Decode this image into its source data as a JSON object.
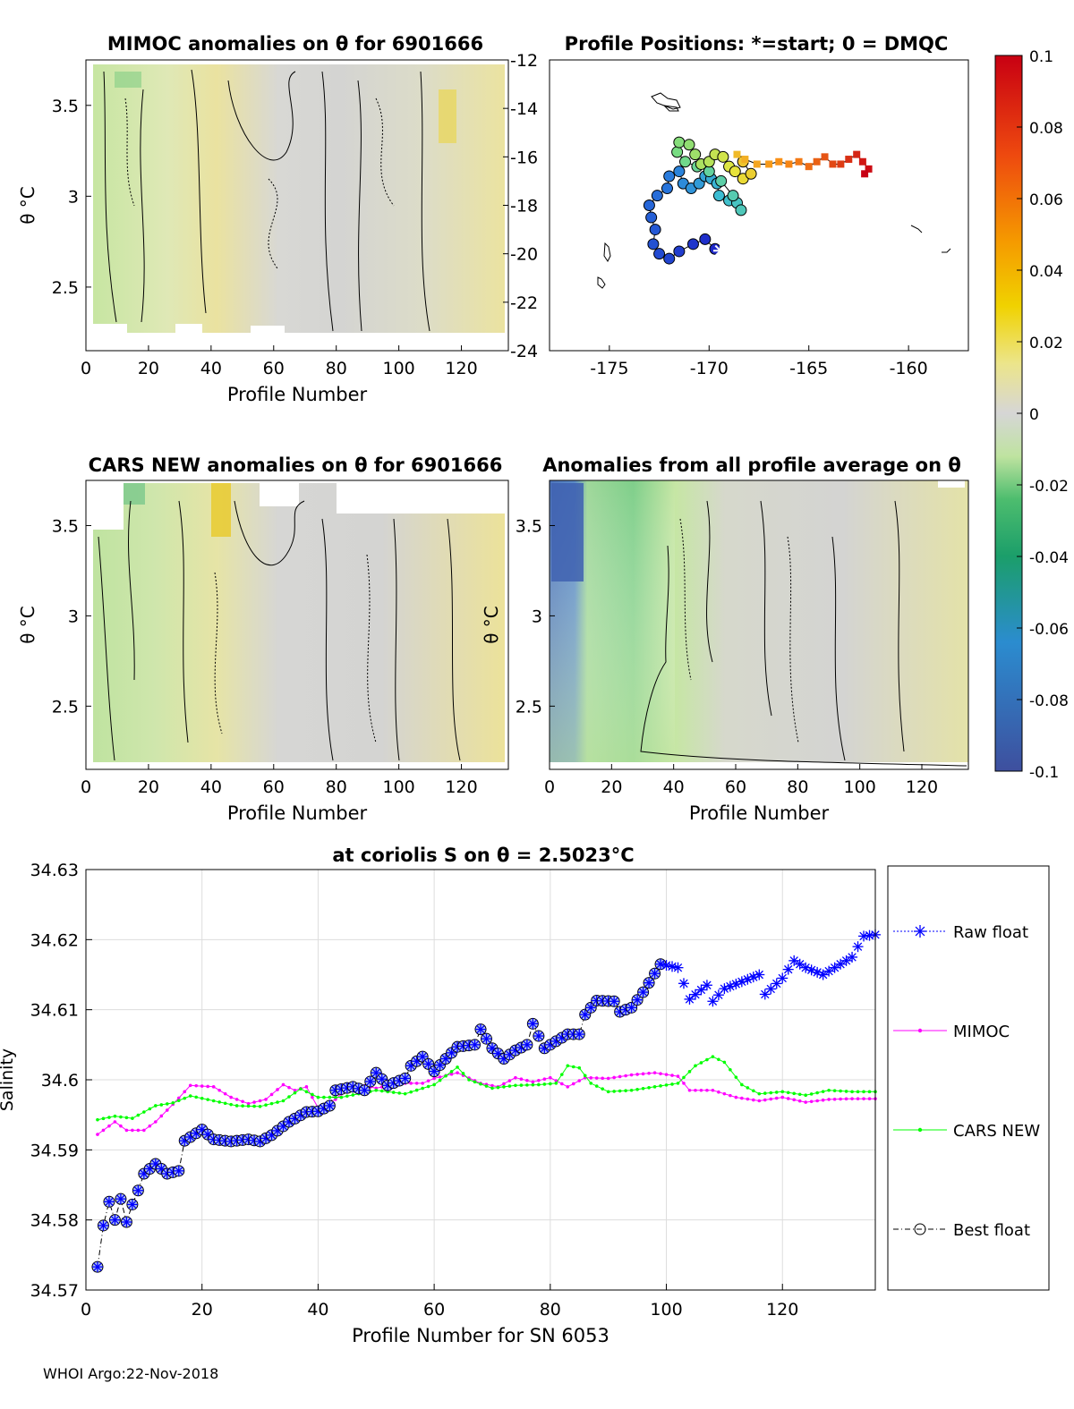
{
  "footer": "WHOI Argo:22-Nov-2018",
  "colorbar": {
    "ticks": [
      "0.1",
      "0.08",
      "0.06",
      "0.04",
      "0.02",
      "0",
      "-0.02",
      "-0.04",
      "-0.06",
      "-0.08",
      "-0.1"
    ],
    "range": [
      -0.1,
      0.1
    ]
  },
  "chart_data": [
    {
      "type": "heatmap",
      "title": "MIMOC anomalies on θ  for 6901666",
      "xlabel": "Profile Number",
      "ylabel": "θ °C",
      "xlim": [
        0,
        135
      ],
      "ylim": [
        2.15,
        3.75
      ],
      "xticks": [
        "0",
        "20",
        "40",
        "60",
        "80",
        "100",
        "120"
      ],
      "yticks": [
        "3.5",
        "3",
        "2.5"
      ]
    },
    {
      "type": "scatter",
      "title": "Profile Positions: *=start; 0 = DMQC",
      "xlim": [
        -178,
        -157
      ],
      "ylim": [
        -24,
        -12
      ],
      "xticks": [
        "-175",
        "-170",
        "-165",
        "-160"
      ],
      "yticks": [
        "-12",
        "-14",
        "-16",
        "-18",
        "-20",
        "-22",
        "-24"
      ],
      "track": [
        [
          -169.7,
          -19.8
        ],
        [
          -170.2,
          -19.4
        ],
        [
          -170.8,
          -19.6
        ],
        [
          -171.5,
          -19.9
        ],
        [
          -172,
          -20.2
        ],
        [
          -172.5,
          -20.0
        ],
        [
          -172.8,
          -19.6
        ],
        [
          -172.7,
          -19.0
        ],
        [
          -172.9,
          -18.5
        ],
        [
          -173,
          -18.0
        ],
        [
          -172.6,
          -17.6
        ],
        [
          -172.1,
          -17.3
        ],
        [
          -172.0,
          -16.8
        ],
        [
          -171.5,
          -16.6
        ],
        [
          -171.3,
          -17.1
        ],
        [
          -170.9,
          -17.3
        ],
        [
          -170.5,
          -17.1
        ],
        [
          -170.2,
          -16.8
        ],
        [
          -169.9,
          -16.9
        ],
        [
          -169.6,
          -17.1
        ],
        [
          -169.5,
          -17.6
        ],
        [
          -169.0,
          -17.8
        ],
        [
          -168.6,
          -17.9
        ],
        [
          -168.4,
          -18.2
        ],
        [
          -168.8,
          -17.6
        ],
        [
          -169.4,
          -17.0
        ],
        [
          -170.0,
          -16.6
        ],
        [
          -170.6,
          -16.4
        ],
        [
          -171.2,
          -16.2
        ],
        [
          -171.6,
          -15.8
        ],
        [
          -171.5,
          -15.4
        ],
        [
          -171.0,
          -15.5
        ],
        [
          -170.7,
          -15.9
        ],
        [
          -170.4,
          -16.3
        ],
        [
          -170.0,
          -16.2
        ],
        [
          -169.7,
          -15.9
        ],
        [
          -169.3,
          -16.0
        ],
        [
          -169.0,
          -16.4
        ],
        [
          -168.7,
          -16.6
        ],
        [
          -168.3,
          -16.9
        ],
        [
          -167.9,
          -16.7
        ],
        [
          -168.3,
          -16.2
        ],
        [
          -168.6,
          -15.9
        ],
        [
          -168.2,
          -16.1
        ],
        [
          -167.6,
          -16.3
        ],
        [
          -167.0,
          -16.3
        ],
        [
          -166.5,
          -16.2
        ],
        [
          -166.0,
          -16.3
        ],
        [
          -165.5,
          -16.2
        ],
        [
          -165.0,
          -16.4
        ],
        [
          -164.6,
          -16.2
        ],
        [
          -164.2,
          -16.0
        ],
        [
          -163.8,
          -16.3
        ],
        [
          -163.4,
          -16.3
        ],
        [
          -163.0,
          -16.1
        ],
        [
          -162.6,
          -15.9
        ],
        [
          -162.3,
          -16.2
        ],
        [
          -162.0,
          -16.5
        ],
        [
          -162.2,
          -16.7
        ]
      ]
    },
    {
      "type": "heatmap",
      "title": "CARS NEW anomalies on θ for 6901666",
      "xlabel": "Profile Number",
      "ylabel": "θ °C",
      "xlim": [
        0,
        135
      ],
      "ylim": [
        2.15,
        3.75
      ],
      "xticks": [
        "0",
        "20",
        "40",
        "60",
        "80",
        "100",
        "120"
      ],
      "yticks": [
        "3.5",
        "3",
        "2.5"
      ]
    },
    {
      "type": "heatmap",
      "title": "Anomalies from all profile average on θ",
      "xlabel": "Profile Number",
      "ylabel": "θ °C",
      "xlim": [
        0,
        135
      ],
      "ylim": [
        2.15,
        3.75
      ],
      "xticks": [
        "0",
        "20",
        "40",
        "60",
        "80",
        "100",
        "120"
      ],
      "yticks": [
        "3.5",
        "3",
        "2.5"
      ]
    },
    {
      "type": "line",
      "title": "at coriolis S on θ = 2.5023°C",
      "xlabel": "Profile Number for SN 6053",
      "ylabel": "Salinity",
      "xlim": [
        0,
        136
      ],
      "ylim": [
        34.57,
        34.63
      ],
      "xticks": [
        "0",
        "20",
        "40",
        "60",
        "80",
        "100",
        "120"
      ],
      "yticks": [
        "34.63",
        "34.62",
        "34.61",
        "34.6",
        "34.59",
        "34.58",
        "34.57"
      ],
      "legend_position": "right",
      "series": [
        {
          "name": "Raw float",
          "color": "#0000ff",
          "style": "dotted",
          "marker": "asterisk",
          "anchors": [
            [
              2,
              34.5733
            ],
            [
              3,
              34.5792
            ],
            [
              4,
              34.5826
            ],
            [
              5,
              34.58
            ],
            [
              6,
              34.583
            ],
            [
              7,
              34.5797
            ],
            [
              8,
              34.5822
            ],
            [
              9,
              34.5842
            ],
            [
              10,
              34.5866
            ],
            [
              12,
              34.588
            ],
            [
              14,
              34.5866
            ],
            [
              16,
              34.587
            ],
            [
              17,
              34.5913
            ],
            [
              20,
              34.5929
            ],
            [
              22,
              34.5915
            ],
            [
              25,
              34.5912
            ],
            [
              28,
              34.5915
            ],
            [
              30,
              34.5912
            ],
            [
              32,
              34.5921
            ],
            [
              35,
              34.594
            ],
            [
              38,
              34.5954
            ],
            [
              40,
              34.5955
            ],
            [
              42,
              34.5963
            ],
            [
              43,
              34.5985
            ],
            [
              46,
              34.599
            ],
            [
              48,
              34.5985
            ],
            [
              50,
              34.601
            ],
            [
              52,
              34.5992
            ],
            [
              55,
              34.6002
            ],
            [
              56,
              34.602
            ],
            [
              58,
              34.6033
            ],
            [
              60,
              34.6012
            ],
            [
              62,
              34.603
            ],
            [
              64,
              34.6047
            ],
            [
              67,
              34.605
            ],
            [
              68,
              34.6072
            ],
            [
              70,
              34.6045
            ],
            [
              72,
              34.603
            ],
            [
              74,
              34.6042
            ],
            [
              76,
              34.605
            ],
            [
              77,
              34.608
            ],
            [
              79,
              34.6045
            ],
            [
              81,
              34.6055
            ],
            [
              83,
              34.6065
            ],
            [
              85,
              34.6065
            ],
            [
              86,
              34.6093
            ],
            [
              88,
              34.6113
            ],
            [
              91,
              34.6112
            ],
            [
              92,
              34.6097
            ],
            [
              94,
              34.6103
            ],
            [
              96,
              34.6125
            ],
            [
              99,
              34.6165
            ],
            [
              102,
              34.616
            ],
            [
              104,
              34.6115
            ],
            [
              107,
              34.6135
            ],
            [
              108,
              34.6112
            ],
            [
              110,
              34.613
            ],
            [
              113,
              34.614
            ],
            [
              116,
              34.615
            ],
            [
              117,
              34.6122
            ],
            [
              120,
              34.6145
            ],
            [
              122,
              34.617
            ],
            [
              124,
              34.616
            ],
            [
              127,
              34.615
            ],
            [
              130,
              34.6165
            ],
            [
              132,
              34.6175
            ],
            [
              134,
              34.6205
            ],
            [
              136,
              34.6207
            ]
          ]
        },
        {
          "name": "MIMOC",
          "color": "#ff00ff",
          "style": "solid",
          "marker": "dot",
          "anchors": [
            [
              2,
              34.5922
            ],
            [
              5,
              34.594
            ],
            [
              7,
              34.5928
            ],
            [
              10,
              34.5928
            ],
            [
              12,
              34.594
            ],
            [
              15,
              34.5965
            ],
            [
              18,
              34.5992
            ],
            [
              22,
              34.599
            ],
            [
              25,
              34.5975
            ],
            [
              28,
              34.5966
            ],
            [
              31,
              34.5972
            ],
            [
              34,
              34.5993
            ],
            [
              36,
              34.5985
            ],
            [
              38,
              34.599
            ],
            [
              40,
              34.596
            ],
            [
              43,
              34.5972
            ],
            [
              46,
              34.5995
            ],
            [
              50,
              34.5988
            ],
            [
              54,
              34.5995
            ],
            [
              58,
              34.5995
            ],
            [
              60,
              34.6002
            ],
            [
              64,
              34.601
            ],
            [
              68,
              34.5995
            ],
            [
              71,
              34.599
            ],
            [
              74,
              34.6003
            ],
            [
              77,
              34.5997
            ],
            [
              80,
              34.6003
            ],
            [
              83,
              34.599
            ],
            [
              86,
              34.6003
            ],
            [
              90,
              34.6002
            ],
            [
              94,
              34.6007
            ],
            [
              98,
              34.601
            ],
            [
              102,
              34.6005
            ],
            [
              104,
              34.5985
            ],
            [
              108,
              34.5985
            ],
            [
              112,
              34.5975
            ],
            [
              116,
              34.597
            ],
            [
              120,
              34.5975
            ],
            [
              124,
              34.5968
            ],
            [
              128,
              34.5972
            ],
            [
              132,
              34.5973
            ],
            [
              136,
              34.5973
            ]
          ]
        },
        {
          "name": "CARS NEW",
          "color": "#00ff00",
          "style": "solid",
          "marker": "dot",
          "anchors": [
            [
              2,
              34.5943
            ],
            [
              5,
              34.5948
            ],
            [
              8,
              34.5945
            ],
            [
              12,
              34.5963
            ],
            [
              15,
              34.5967
            ],
            [
              18,
              34.5977
            ],
            [
              22,
              34.597
            ],
            [
              26,
              34.5963
            ],
            [
              30,
              34.5962
            ],
            [
              34,
              34.597
            ],
            [
              37,
              34.5987
            ],
            [
              40,
              34.5975
            ],
            [
              44,
              34.5975
            ],
            [
              47,
              34.598
            ],
            [
              50,
              34.5985
            ],
            [
              55,
              34.598
            ],
            [
              60,
              34.5993
            ],
            [
              64,
              34.6018
            ],
            [
              66,
              34.6
            ],
            [
              70,
              34.5988
            ],
            [
              74,
              34.5992
            ],
            [
              78,
              34.5993
            ],
            [
              81,
              34.5995
            ],
            [
              83,
              34.602
            ],
            [
              85,
              34.6017
            ],
            [
              87,
              34.5995
            ],
            [
              90,
              34.5983
            ],
            [
              94,
              34.5985
            ],
            [
              98,
              34.599
            ],
            [
              102,
              34.5995
            ],
            [
              105,
              34.602
            ],
            [
              108,
              34.6033
            ],
            [
              110,
              34.6025
            ],
            [
              113,
              34.5993
            ],
            [
              116,
              34.598
            ],
            [
              120,
              34.5983
            ],
            [
              124,
              34.5978
            ],
            [
              128,
              34.5985
            ],
            [
              132,
              34.5983
            ],
            [
              136,
              34.5983
            ]
          ]
        },
        {
          "name": "Best float",
          "color": "#000000",
          "style": "dashdot",
          "marker": "circle",
          "range": [
            2,
            99
          ]
        }
      ]
    }
  ]
}
